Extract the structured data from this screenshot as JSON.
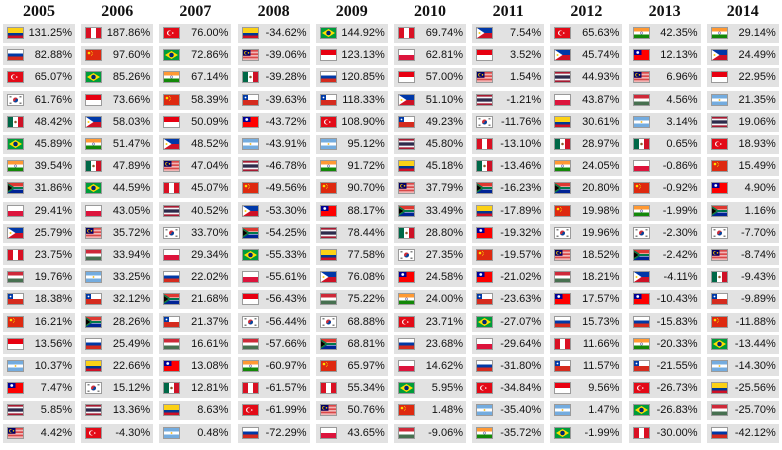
{
  "colors": {
    "cell_bg": "#e2e2e2",
    "text": "#111111"
  },
  "chart_data": {
    "type": "table",
    "years": [
      "2005",
      "2006",
      "2007",
      "2008",
      "2009",
      "2010",
      "2011",
      "2012",
      "2013",
      "2014"
    ],
    "columns": [
      {
        "year": "2005",
        "rows": [
          {
            "flag": "colombia",
            "value": "131.25%"
          },
          {
            "flag": "russia",
            "value": "82.88%"
          },
          {
            "flag": "turkey",
            "value": "65.07%"
          },
          {
            "flag": "south-korea",
            "value": "61.76%"
          },
          {
            "flag": "mexico",
            "value": "48.42%"
          },
          {
            "flag": "brazil",
            "value": "45.89%"
          },
          {
            "flag": "india",
            "value": "39.54%"
          },
          {
            "flag": "south-africa",
            "value": "31.86%"
          },
          {
            "flag": "poland",
            "value": "29.41%"
          },
          {
            "flag": "philippines",
            "value": "25.79%"
          },
          {
            "flag": "peru",
            "value": "23.75%"
          },
          {
            "flag": "hungary",
            "value": "19.76%"
          },
          {
            "flag": "chile",
            "value": "18.38%"
          },
          {
            "flag": "china",
            "value": "16.21%"
          },
          {
            "flag": "indonesia",
            "value": "13.56%"
          },
          {
            "flag": "argentina",
            "value": "10.37%"
          },
          {
            "flag": "taiwan",
            "value": "7.47%"
          },
          {
            "flag": "thailand",
            "value": "5.85%"
          },
          {
            "flag": "malaysia",
            "value": "4.42%"
          }
        ]
      },
      {
        "year": "2006",
        "rows": [
          {
            "flag": "peru",
            "value": "187.86%"
          },
          {
            "flag": "china",
            "value": "97.60%"
          },
          {
            "flag": "brazil",
            "value": "85.26%"
          },
          {
            "flag": "indonesia",
            "value": "73.66%"
          },
          {
            "flag": "philippines",
            "value": "58.03%"
          },
          {
            "flag": "india",
            "value": "51.47%"
          },
          {
            "flag": "mexico",
            "value": "47.89%"
          },
          {
            "flag": "brazil",
            "value": "44.59%"
          },
          {
            "flag": "poland",
            "value": "43.05%"
          },
          {
            "flag": "malaysia",
            "value": "35.72%"
          },
          {
            "flag": "hungary",
            "value": "33.94%"
          },
          {
            "flag": "argentina",
            "value": "33.25%"
          },
          {
            "flag": "chile",
            "value": "32.12%"
          },
          {
            "flag": "south-africa",
            "value": "28.26%"
          },
          {
            "flag": "russia",
            "value": "25.49%"
          },
          {
            "flag": "colombia",
            "value": "22.66%"
          },
          {
            "flag": "south-korea",
            "value": "15.12%"
          },
          {
            "flag": "thailand",
            "value": "13.36%"
          },
          {
            "flag": "turkey",
            "value": "-4.30%"
          }
        ]
      },
      {
        "year": "2007",
        "rows": [
          {
            "flag": "turkey",
            "value": "76.00%"
          },
          {
            "flag": "brazil",
            "value": "72.86%"
          },
          {
            "flag": "india",
            "value": "67.14%"
          },
          {
            "flag": "china",
            "value": "58.39%"
          },
          {
            "flag": "indonesia",
            "value": "50.09%"
          },
          {
            "flag": "philippines",
            "value": "48.52%"
          },
          {
            "flag": "malaysia",
            "value": "47.04%"
          },
          {
            "flag": "peru",
            "value": "45.07%"
          },
          {
            "flag": "thailand",
            "value": "40.52%"
          },
          {
            "flag": "south-korea",
            "value": "33.70%"
          },
          {
            "flag": "poland",
            "value": "29.34%"
          },
          {
            "flag": "russia",
            "value": "22.02%"
          },
          {
            "flag": "south-africa",
            "value": "21.68%"
          },
          {
            "flag": "chile",
            "value": "21.37%"
          },
          {
            "flag": "hungary",
            "value": "16.61%"
          },
          {
            "flag": "taiwan",
            "value": "13.08%"
          },
          {
            "flag": "mexico",
            "value": "12.81%"
          },
          {
            "flag": "colombia",
            "value": "8.63%"
          },
          {
            "flag": "argentina",
            "value": "0.48%"
          }
        ]
      },
      {
        "year": "2008",
        "rows": [
          {
            "flag": "colombia",
            "value": "-34.62%"
          },
          {
            "flag": "malaysia",
            "value": "-39.06%"
          },
          {
            "flag": "mexico",
            "value": "-39.28%"
          },
          {
            "flag": "chile",
            "value": "-39.63%"
          },
          {
            "flag": "taiwan",
            "value": "-43.72%"
          },
          {
            "flag": "argentina",
            "value": "-43.91%"
          },
          {
            "flag": "thailand",
            "value": "-46.78%"
          },
          {
            "flag": "china",
            "value": "-49.56%"
          },
          {
            "flag": "philippines",
            "value": "-53.30%"
          },
          {
            "flag": "south-africa",
            "value": "-54.25%"
          },
          {
            "flag": "brazil",
            "value": "-55.33%"
          },
          {
            "flag": "poland",
            "value": "-55.61%"
          },
          {
            "flag": "indonesia",
            "value": "-56.43%"
          },
          {
            "flag": "south-korea",
            "value": "-56.44%"
          },
          {
            "flag": "hungary",
            "value": "-57.66%"
          },
          {
            "flag": "india",
            "value": "-60.97%"
          },
          {
            "flag": "peru",
            "value": "-61.57%"
          },
          {
            "flag": "turkey",
            "value": "-61.99%"
          },
          {
            "flag": "russia",
            "value": "-72.29%"
          }
        ]
      },
      {
        "year": "2009",
        "rows": [
          {
            "flag": "brazil",
            "value": "144.92%"
          },
          {
            "flag": "indonesia",
            "value": "123.13%"
          },
          {
            "flag": "russia",
            "value": "120.85%"
          },
          {
            "flag": "chile",
            "value": "118.33%"
          },
          {
            "flag": "turkey",
            "value": "108.90%"
          },
          {
            "flag": "argentina",
            "value": "95.12%"
          },
          {
            "flag": "india",
            "value": "91.72%"
          },
          {
            "flag": "china",
            "value": "90.70%"
          },
          {
            "flag": "taiwan",
            "value": "88.17%"
          },
          {
            "flag": "thailand",
            "value": "78.44%"
          },
          {
            "flag": "colombia",
            "value": "77.58%"
          },
          {
            "flag": "philippines",
            "value": "76.08%"
          },
          {
            "flag": "hungary",
            "value": "75.22%"
          },
          {
            "flag": "south-korea",
            "value": "68.88%"
          },
          {
            "flag": "south-africa",
            "value": "68.81%"
          },
          {
            "flag": "china",
            "value": "65.97%"
          },
          {
            "flag": "peru",
            "value": "55.34%"
          },
          {
            "flag": "malaysia",
            "value": "50.76%"
          },
          {
            "flag": "poland",
            "value": "43.65%"
          }
        ]
      },
      {
        "year": "2010",
        "rows": [
          {
            "flag": "peru",
            "value": "69.74%"
          },
          {
            "flag": "poland",
            "value": "62.81%"
          },
          {
            "flag": "indonesia",
            "value": "57.00%"
          },
          {
            "flag": "philippines",
            "value": "51.10%"
          },
          {
            "flag": "chile",
            "value": "49.23%"
          },
          {
            "flag": "thailand",
            "value": "45.80%"
          },
          {
            "flag": "colombia",
            "value": "45.18%"
          },
          {
            "flag": "malaysia",
            "value": "37.79%"
          },
          {
            "flag": "south-africa",
            "value": "33.49%"
          },
          {
            "flag": "mexico",
            "value": "28.80%"
          },
          {
            "flag": "south-korea",
            "value": "27.35%"
          },
          {
            "flag": "taiwan",
            "value": "24.58%"
          },
          {
            "flag": "india",
            "value": "24.00%"
          },
          {
            "flag": "turkey",
            "value": "23.71%"
          },
          {
            "flag": "russia",
            "value": "23.68%"
          },
          {
            "flag": "poland",
            "value": "14.62%"
          },
          {
            "flag": "brazil",
            "value": "5.95%"
          },
          {
            "flag": "china",
            "value": "1.48%"
          },
          {
            "flag": "hungary",
            "value": "-9.06%"
          }
        ]
      },
      {
        "year": "2011",
        "rows": [
          {
            "flag": "philippines",
            "value": "7.54%"
          },
          {
            "flag": "indonesia",
            "value": "3.52%"
          },
          {
            "flag": "malaysia",
            "value": "1.54%"
          },
          {
            "flag": "thailand",
            "value": "-1.21%"
          },
          {
            "flag": "south-korea",
            "value": "-11.76%"
          },
          {
            "flag": "peru",
            "value": "-13.10%"
          },
          {
            "flag": "mexico",
            "value": "-13.46%"
          },
          {
            "flag": "south-africa",
            "value": "-16.23%"
          },
          {
            "flag": "colombia",
            "value": "-17.89%"
          },
          {
            "flag": "taiwan",
            "value": "-19.32%"
          },
          {
            "flag": "china",
            "value": "-19.57%"
          },
          {
            "flag": "taiwan",
            "value": "-21.02%"
          },
          {
            "flag": "chile",
            "value": "-23.63%"
          },
          {
            "flag": "brazil",
            "value": "-27.07%"
          },
          {
            "flag": "poland",
            "value": "-29.64%"
          },
          {
            "flag": "russia",
            "value": "-31.80%"
          },
          {
            "flag": "turkey",
            "value": "-34.84%"
          },
          {
            "flag": "argentina",
            "value": "-35.40%"
          },
          {
            "flag": "india",
            "value": "-35.72%"
          }
        ]
      },
      {
        "year": "2012",
        "rows": [
          {
            "flag": "turkey",
            "value": "65.63%"
          },
          {
            "flag": "philippines",
            "value": "45.74%"
          },
          {
            "flag": "thailand",
            "value": "44.93%"
          },
          {
            "flag": "poland",
            "value": "43.87%"
          },
          {
            "flag": "colombia",
            "value": "30.61%"
          },
          {
            "flag": "mexico",
            "value": "28.97%"
          },
          {
            "flag": "india",
            "value": "24.05%"
          },
          {
            "flag": "south-africa",
            "value": "20.80%"
          },
          {
            "flag": "china",
            "value": "19.98%"
          },
          {
            "flag": "south-korea",
            "value": "19.96%"
          },
          {
            "flag": "malaysia",
            "value": "18.52%"
          },
          {
            "flag": "hungary",
            "value": "18.21%"
          },
          {
            "flag": "taiwan",
            "value": "17.57%"
          },
          {
            "flag": "russia",
            "value": "15.73%"
          },
          {
            "flag": "peru",
            "value": "11.66%"
          },
          {
            "flag": "chile",
            "value": "11.57%"
          },
          {
            "flag": "indonesia",
            "value": "9.56%"
          },
          {
            "flag": "argentina",
            "value": "1.47%"
          },
          {
            "flag": "brazil",
            "value": "-1.99%"
          }
        ]
      },
      {
        "year": "2013",
        "rows": [
          {
            "flag": "india",
            "value": "42.35%"
          },
          {
            "flag": "taiwan",
            "value": "12.13%"
          },
          {
            "flag": "malaysia",
            "value": "6.96%"
          },
          {
            "flag": "hungary",
            "value": "4.56%"
          },
          {
            "flag": "argentina",
            "value": "3.14%"
          },
          {
            "flag": "mexico",
            "value": "0.65%"
          },
          {
            "flag": "poland",
            "value": "-0.86%"
          },
          {
            "flag": "china",
            "value": "-0.92%"
          },
          {
            "flag": "india",
            "value": "-1.99%"
          },
          {
            "flag": "south-korea",
            "value": "-2.30%"
          },
          {
            "flag": "south-africa",
            "value": "-2.42%"
          },
          {
            "flag": "philippines",
            "value": "-4.11%"
          },
          {
            "flag": "taiwan",
            "value": "-10.43%"
          },
          {
            "flag": "russia",
            "value": "-15.83%"
          },
          {
            "flag": "india",
            "value": "-20.33%"
          },
          {
            "flag": "chile",
            "value": "-21.55%"
          },
          {
            "flag": "turkey",
            "value": "-26.73%"
          },
          {
            "flag": "brazil",
            "value": "-26.83%"
          },
          {
            "flag": "peru",
            "value": "-30.00%"
          }
        ]
      },
      {
        "year": "2014",
        "rows": [
          {
            "flag": "india",
            "value": "29.14%"
          },
          {
            "flag": "philippines",
            "value": "24.49%"
          },
          {
            "flag": "indonesia",
            "value": "22.95%"
          },
          {
            "flag": "argentina",
            "value": "21.35%"
          },
          {
            "flag": "thailand",
            "value": "19.06%"
          },
          {
            "flag": "turkey",
            "value": "18.93%"
          },
          {
            "flag": "china",
            "value": "15.49%"
          },
          {
            "flag": "taiwan",
            "value": "4.90%"
          },
          {
            "flag": "south-africa",
            "value": "1.16%"
          },
          {
            "flag": "south-korea",
            "value": "-7.70%"
          },
          {
            "flag": "malaysia",
            "value": "-8.74%"
          },
          {
            "flag": "mexico",
            "value": "-9.43%"
          },
          {
            "flag": "chile",
            "value": "-9.89%"
          },
          {
            "flag": "china",
            "value": "-11.88%"
          },
          {
            "flag": "brazil",
            "value": "-13.44%"
          },
          {
            "flag": "argentina",
            "value": "-14.30%"
          },
          {
            "flag": "colombia",
            "value": "-25.56%"
          },
          {
            "flag": "hungary",
            "value": "-25.70%"
          },
          {
            "flag": "russia",
            "value": "-42.12%"
          }
        ]
      }
    ]
  }
}
